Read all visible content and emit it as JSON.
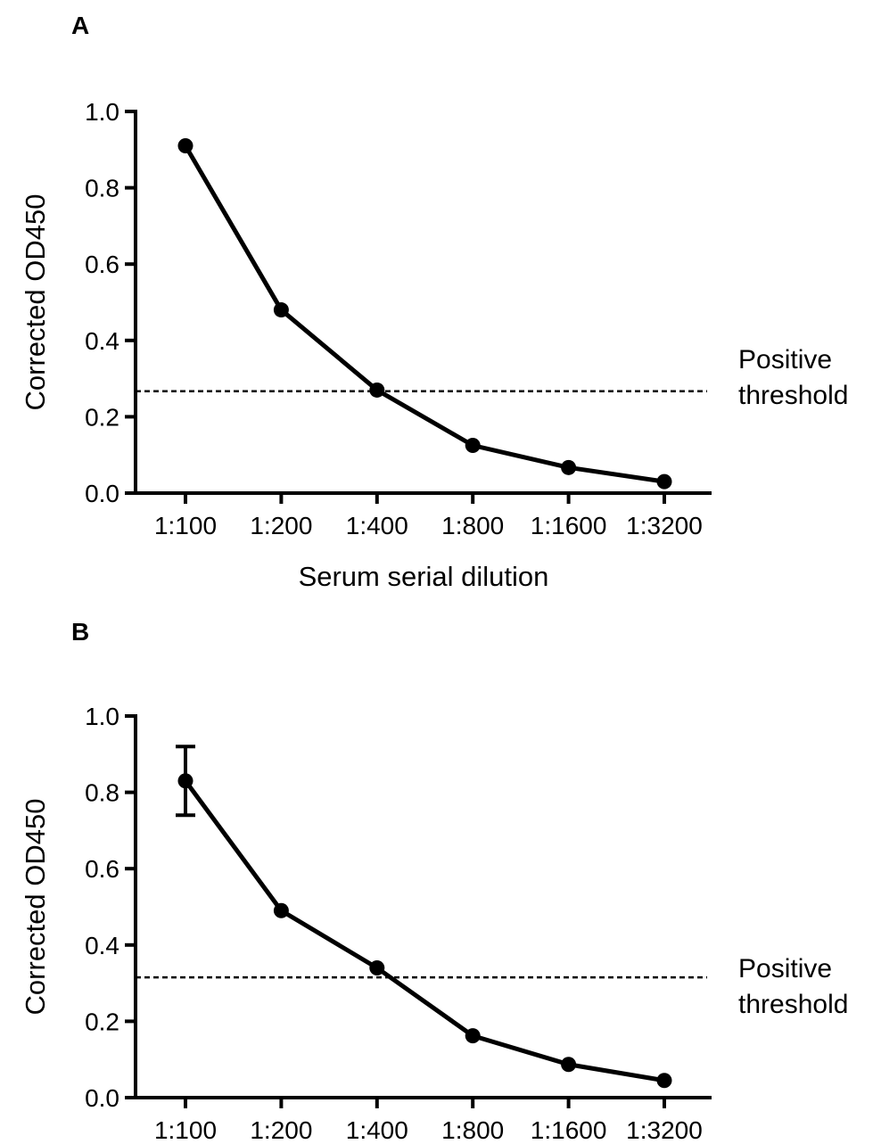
{
  "chart_data": [
    {
      "type": "line",
      "panel_label": "A",
      "categories": [
        "1:100",
        "1:200",
        "1:400",
        "1:800",
        "1:1600",
        "1:3200"
      ],
      "series": [
        {
          "values": [
            0.91,
            0.48,
            0.27,
            0.125,
            0.067,
            0.03
          ]
        }
      ],
      "threshold": {
        "value": 0.267,
        "label_line1": "Positive",
        "label_line2": "threshold"
      },
      "ylabel": "Corrected OD450",
      "xlabel": "Serum serial dilution",
      "ylim": [
        0,
        1.0
      ],
      "yticks": [
        "0.0",
        "0.2",
        "0.4",
        "0.6",
        "0.8",
        "1.0"
      ],
      "grid": false
    },
    {
      "type": "line",
      "panel_label": "B",
      "categories": [
        "1:100",
        "1:200",
        "1:400",
        "1:800",
        "1:1600",
        "1:3200"
      ],
      "series": [
        {
          "values": [
            0.83,
            0.49,
            0.34,
            0.162,
            0.087,
            0.045
          ],
          "error_bars": [
            [
              0.74,
              0.92
            ],
            null,
            null,
            null,
            null,
            null
          ]
        }
      ],
      "threshold": {
        "value": 0.315,
        "label_line1": "Positive",
        "label_line2": "threshold"
      },
      "ylabel": "Corrected OD450",
      "xlabel": "",
      "ylim": [
        0,
        1.0
      ],
      "yticks": [
        "0.0",
        "0.2",
        "0.4",
        "0.6",
        "0.8",
        "1.0"
      ],
      "grid": false
    }
  ]
}
